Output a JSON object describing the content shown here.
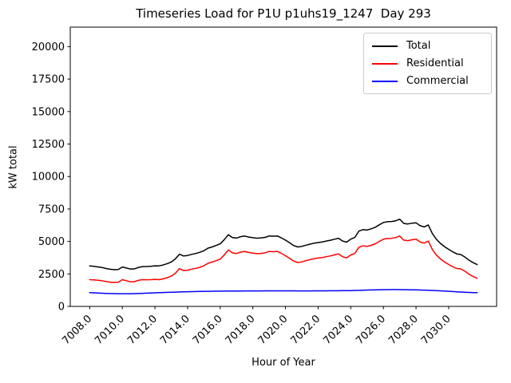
{
  "chart_data": {
    "type": "line",
    "title": "Timeseries Load for P1U p1uhs19_1247  Day 293",
    "xlabel": "Hour of Year",
    "ylabel": "kW total",
    "xlim": [
      7006.81,
      7032.94
    ],
    "ylim": [
      0,
      21500
    ],
    "grid": false,
    "legend_position": "upper right",
    "x_start": 7008.0,
    "x_step": 0.25,
    "x_ticks": [
      {
        "value": 7008,
        "label": "7008.0"
      },
      {
        "value": 7010,
        "label": "7010.0"
      },
      {
        "value": 7012,
        "label": "7012.0"
      },
      {
        "value": 7014,
        "label": "7014.0"
      },
      {
        "value": 7016,
        "label": "7016.0"
      },
      {
        "value": 7018,
        "label": "7018.0"
      },
      {
        "value": 7020,
        "label": "7020.0"
      },
      {
        "value": 7022,
        "label": "7022.0"
      },
      {
        "value": 7024,
        "label": "7024.0"
      },
      {
        "value": 7026,
        "label": "7026.0"
      },
      {
        "value": 7028,
        "label": "7028.0"
      },
      {
        "value": 7030,
        "label": "7030.0"
      }
    ],
    "y_ticks": [
      {
        "value": 0,
        "label": "0"
      },
      {
        "value": 2500,
        "label": "2500"
      },
      {
        "value": 5000,
        "label": "5000"
      },
      {
        "value": 7500,
        "label": "7500"
      },
      {
        "value": 10000,
        "label": "10000"
      },
      {
        "value": 12500,
        "label": "12500"
      },
      {
        "value": 15000,
        "label": "15000"
      },
      {
        "value": 17500,
        "label": "17500"
      },
      {
        "value": 20000,
        "label": "20000"
      }
    ],
    "series": [
      {
        "name": "Total",
        "color": "#000000",
        "values": [
          3120,
          3085,
          3040,
          2995,
          2915,
          2860,
          2827,
          2838,
          3035,
          2955,
          2873,
          2895,
          3005,
          3068,
          3070,
          3092,
          3125,
          3118,
          3190,
          3292,
          3422,
          3652,
          4017,
          3882,
          3920,
          4008,
          4075,
          4162,
          4288,
          4483,
          4578,
          4692,
          4816,
          5139,
          5522,
          5304,
          5256,
          5368,
          5420,
          5341,
          5292,
          5253,
          5274,
          5315,
          5426,
          5406,
          5426,
          5276,
          5096,
          4895,
          4685,
          4574,
          4623,
          4713,
          4794,
          4865,
          4916,
          4958,
          5030,
          5092,
          5174,
          5247,
          5030,
          4954,
          5178,
          5306,
          5796,
          5908,
          5878,
          5968,
          6096,
          6283,
          6458,
          6522,
          6534,
          6594,
          6712,
          6388,
          6343,
          6407,
          6440,
          6211,
          6121,
          6271,
          5610,
          5164,
          4848,
          4600,
          4390,
          4200,
          4042,
          3995,
          3788,
          3555,
          3365,
          3218
        ]
      },
      {
        "name": "Residential",
        "color": "#ff0000",
        "values": [
          2060,
          2040,
          2010,
          1980,
          1915,
          1870,
          1845,
          1860,
          2060,
          1980,
          1895,
          1910,
          2010,
          2060,
          2050,
          2060,
          2080,
          2060,
          2120,
          2210,
          2330,
          2550,
          2905,
          2760,
          2790,
          2870,
          2930,
          3010,
          3130,
          3320,
          3410,
          3520,
          3640,
          3960,
          4340,
          4120,
          4070,
          4180,
          4230,
          4150,
          4100,
          4060,
          4080,
          4120,
          4230,
          4210,
          4230,
          4080,
          3900,
          3700,
          3490,
          3380,
          3430,
          3520,
          3600,
          3670,
          3720,
          3760,
          3830,
          3890,
          3970,
          4040,
          3820,
          3740,
          3960,
          4080,
          4560,
          4660,
          4620,
          4700,
          4820,
          5000,
          5170,
          5230,
          5240,
          5300,
          5420,
          5100,
          5060,
          5130,
          5170,
          4950,
          4870,
          5030,
          4380,
          3950,
          3650,
          3420,
          3230,
          3060,
          2920,
          2890,
          2700,
          2480,
          2300,
          2160
        ]
      },
      {
        "name": "Commercial",
        "color": "#0000ff",
        "values": [
          1060,
          1045,
          1030,
          1015,
          1000,
          990,
          982,
          978,
          975,
          975,
          978,
          985,
          995,
          1008,
          1020,
          1032,
          1045,
          1058,
          1070,
          1082,
          1092,
          1102,
          1112,
          1122,
          1130,
          1138,
          1145,
          1152,
          1158,
          1163,
          1168,
          1172,
          1176,
          1179,
          1182,
          1184,
          1186,
          1188,
          1190,
          1191,
          1192,
          1193,
          1194,
          1195,
          1196,
          1196,
          1196,
          1196,
          1196,
          1195,
          1195,
          1194,
          1193,
          1193,
          1194,
          1195,
          1196,
          1198,
          1200,
          1202,
          1204,
          1207,
          1210,
          1214,
          1218,
          1226,
          1236,
          1248,
          1258,
          1268,
          1276,
          1283,
          1288,
          1292,
          1294,
          1294,
          1292,
          1288,
          1283,
          1277,
          1270,
          1261,
          1251,
          1241,
          1230,
          1214,
          1198,
          1180,
          1160,
          1140,
          1122,
          1105,
          1088,
          1075,
          1065,
          1058
        ]
      }
    ]
  }
}
